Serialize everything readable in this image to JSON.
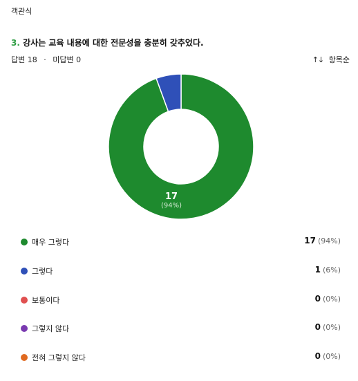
{
  "question": {
    "type_label": "객관식",
    "number": "3.",
    "title": "강사는 교육 내용에 대한 전문성을 충분히 갖추었다.",
    "answered": "답변 18",
    "separator": "·",
    "unanswered": "미답변 0",
    "sort_label": "항목순",
    "sort_icon": "sort-arrows-icon"
  },
  "chart_data": {
    "type": "pie",
    "style": "donut",
    "categories": [
      "매우 그렇다",
      "그렇다",
      "보통이다",
      "그렇지 않다",
      "전혀 그렇지 않다"
    ],
    "values": [
      17,
      1,
      0,
      0,
      0
    ],
    "percents": [
      "(94%)",
      "(6%)",
      "(0%)",
      "(0%)",
      "(0%)"
    ],
    "colors": [
      "#1e8a2e",
      "#2f50b8",
      "#e05050",
      "#7a3ab0",
      "#e06a20"
    ],
    "center_label": {
      "value": "17",
      "percent": "(94%)"
    }
  },
  "legend": [
    {
      "label": "매우 그렇다",
      "count": "17",
      "percent": "(94%)",
      "color": "#1e8a2e"
    },
    {
      "label": "그렇다",
      "count": "1",
      "percent": "(6%)",
      "color": "#2f50b8"
    },
    {
      "label": "보통이다",
      "count": "0",
      "percent": "(0%)",
      "color": "#e05050"
    },
    {
      "label": "그렇지 않다",
      "count": "0",
      "percent": "(0%)",
      "color": "#7a3ab0"
    },
    {
      "label": "전혀 그렇지 않다",
      "count": "0",
      "percent": "(0%)",
      "color": "#e06a20"
    }
  ]
}
